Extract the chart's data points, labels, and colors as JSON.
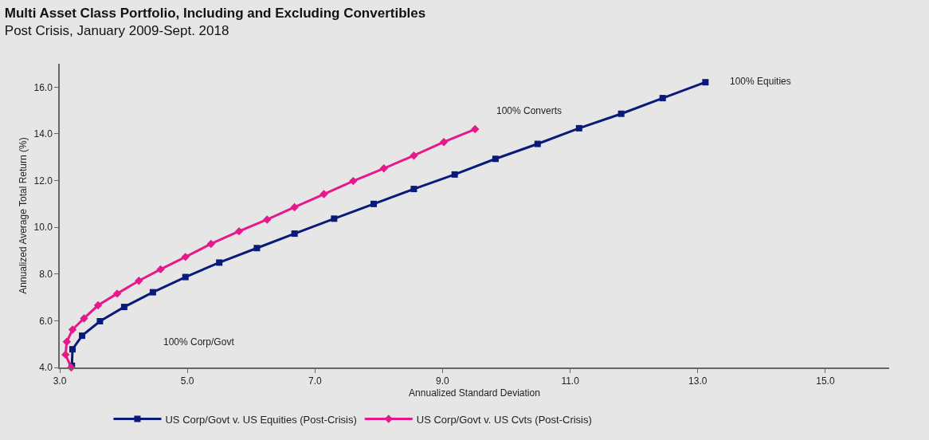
{
  "chart_data": {
    "type": "line",
    "title": "Multi Asset Class Portfolio, Including and Excluding Convertibles",
    "subtitle": "Post Crisis, January 2009-Sept. 2018",
    "xlabel": "Annualized Standard Deviation",
    "ylabel": "Annualized Average Total Return (%)",
    "xlim": [
      3.0,
      16.0
    ],
    "xticks": [
      {
        "value": 3,
        "label": "3.0"
      },
      {
        "value": 5,
        "label": "5.0"
      },
      {
        "value": 7,
        "label": "7.0"
      },
      {
        "value": 9,
        "label": "9.0"
      },
      {
        "value": 11,
        "label": "11.0"
      },
      {
        "value": 13,
        "label": "13.0"
      },
      {
        "value": 15,
        "label": "15.0"
      }
    ],
    "ylim": [
      4.0,
      17.0
    ],
    "yticks": [
      {
        "value": 4,
        "label": "4.0"
      },
      {
        "value": 6,
        "label": "6.0"
      },
      {
        "value": 8,
        "label": "8.0"
      },
      {
        "value": 10,
        "label": "10.0"
      },
      {
        "value": 12,
        "label": "12.0"
      },
      {
        "value": 14,
        "label": "14.0"
      },
      {
        "value": 16,
        "label": "16.0"
      }
    ],
    "grid": false,
    "legend": "bottom",
    "line_style": "solid",
    "series": [
      {
        "name": "US Corp/Govt v. US Equities (Post-Crisis)",
        "color": "#0a1a7a",
        "marker": "square",
        "x": [
          3.19,
          3.2,
          3.35,
          3.63,
          4.01,
          4.46,
          4.97,
          5.5,
          6.09,
          6.68,
          7.3,
          7.92,
          8.55,
          9.19,
          9.83,
          10.49,
          11.14,
          11.8,
          12.45,
          13.12
        ],
        "values": [
          4.07,
          4.78,
          5.36,
          5.98,
          6.59,
          7.22,
          7.87,
          8.49,
          9.11,
          9.73,
          10.37,
          11.0,
          11.64,
          12.26,
          12.93,
          13.57,
          14.24,
          14.86,
          15.53,
          16.21
        ]
      },
      {
        "name": "US Corp/Govt v. US Cvts (Post-Crisis)",
        "color": "#e6198c",
        "marker": "diamond",
        "x": [
          3.18,
          3.09,
          3.11,
          3.2,
          3.38,
          3.6,
          3.9,
          4.24,
          4.58,
          4.97,
          5.37,
          5.81,
          6.25,
          6.68,
          7.14,
          7.6,
          8.08,
          8.55,
          9.02,
          9.51
        ],
        "values": [
          4.0,
          4.55,
          5.1,
          5.62,
          6.1,
          6.66,
          7.16,
          7.71,
          8.2,
          8.73,
          9.29,
          9.83,
          10.33,
          10.86,
          11.42,
          11.98,
          12.52,
          13.07,
          13.65,
          14.2
        ]
      }
    ],
    "annotations": [
      "100% Corp/Govt",
      "100% Converts",
      "100% Equities"
    ]
  }
}
